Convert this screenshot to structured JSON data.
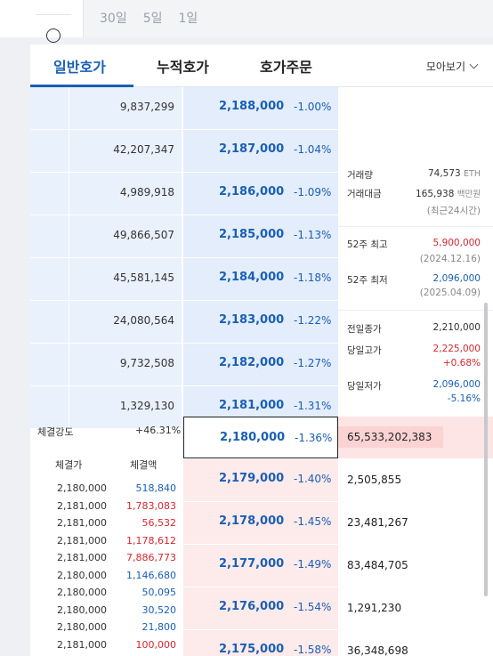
{
  "period_tabs": [
    "30일",
    "5일",
    "1일"
  ],
  "tabs": {
    "general": "일반호가",
    "cumulative": "누적호가",
    "order": "호가주문",
    "view_all": "모아보기"
  },
  "asks": [
    {
      "volume": "9,837,299",
      "price": "2,188,000",
      "pct": "-1.00%"
    },
    {
      "volume": "42,207,347",
      "price": "2,187,000",
      "pct": "-1.04%"
    },
    {
      "volume": "4,989,918",
      "price": "2,186,000",
      "pct": "-1.09%"
    },
    {
      "volume": "49,866,507",
      "price": "2,185,000",
      "pct": "-1.13%"
    },
    {
      "volume": "45,581,145",
      "price": "2,184,000",
      "pct": "-1.18%"
    },
    {
      "volume": "24,080,564",
      "price": "2,183,000",
      "pct": "-1.22%"
    },
    {
      "volume": "9,732,508",
      "price": "2,182,000",
      "pct": "-1.27%"
    },
    {
      "volume": "1,329,130",
      "price": "2,181,000",
      "pct": "-1.31%"
    }
  ],
  "info": {
    "volume_label": "거래량",
    "volume_value": "74,573",
    "volume_unit": "ETH",
    "amount_label": "거래대금",
    "amount_value": "165,938",
    "amount_unit": "백만원",
    "amount_note": "(최근24시간)",
    "high52_label": "52주 최고",
    "high52_value": "5,900,000",
    "high52_date": "(2024.12.16)",
    "low52_label": "52주 최저",
    "low52_value": "2,096,000",
    "low52_date": "(2025.04.09)",
    "prev_close_label": "전일종가",
    "prev_close_value": "2,210,000",
    "day_high_label": "당일고가",
    "day_high_value": "2,225,000",
    "day_high_pct": "+0.68%",
    "day_low_label": "당일저가",
    "day_low_value": "2,096,000",
    "day_low_pct": "-5.16%"
  },
  "strength": {
    "label": "체결강도",
    "value": "+46.31%"
  },
  "current": {
    "price": "2,180,000",
    "pct": "-1.36%",
    "bid_volume": "65,533,202,383"
  },
  "trades_head": {
    "price": "체결가",
    "amount": "체결액"
  },
  "trades": [
    {
      "price": "2,180,000",
      "amount": "518,840",
      "side": "blue"
    },
    {
      "price": "2,181,000",
      "amount": "1,783,083",
      "side": "red"
    },
    {
      "price": "2,181,000",
      "amount": "56,532",
      "side": "red"
    },
    {
      "price": "2,181,000",
      "amount": "1,178,612",
      "side": "red"
    },
    {
      "price": "2,181,000",
      "amount": "7,886,773",
      "side": "red"
    },
    {
      "price": "2,180,000",
      "amount": "1,146,680",
      "side": "blue"
    },
    {
      "price": "2,180,000",
      "amount": "50,095",
      "side": "blue"
    },
    {
      "price": "2,180,000",
      "amount": "30,520",
      "side": "blue"
    },
    {
      "price": "2,180,000",
      "amount": "21,800",
      "side": "blue"
    },
    {
      "price": "2,181,000",
      "amount": "100,000",
      "side": "red"
    }
  ],
  "bids": [
    {
      "price": "2,179,000",
      "pct": "-1.40%",
      "volume": "2,505,855"
    },
    {
      "price": "2,178,000",
      "pct": "-1.45%",
      "volume": "23,481,267"
    },
    {
      "price": "2,177,000",
      "pct": "-1.49%",
      "volume": "83,484,705"
    },
    {
      "price": "2,176,000",
      "pct": "-1.54%",
      "volume": "1,291,230"
    },
    {
      "price": "2,175,000",
      "pct": "-1.58%",
      "volume": "36,348,698"
    }
  ]
}
